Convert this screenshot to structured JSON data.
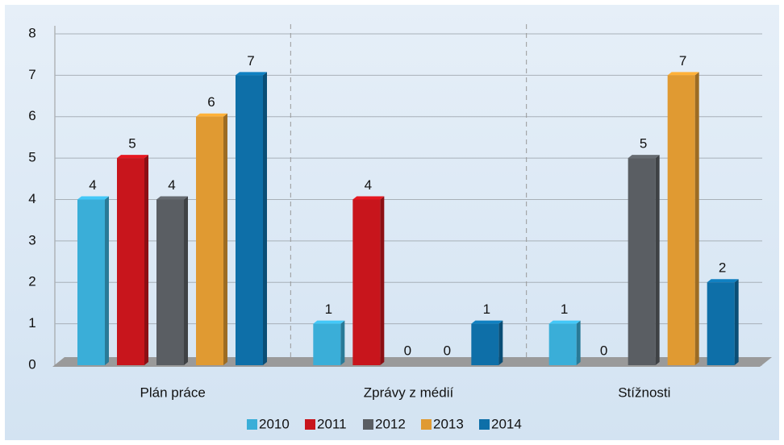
{
  "chart_data": {
    "type": "bar",
    "categories": [
      "Plán práce",
      "Zprávy z médií",
      "Stížnosti"
    ],
    "series": [
      {
        "name": "2010",
        "color": "#3aaed8",
        "values": [
          4,
          1,
          1
        ]
      },
      {
        "name": "2011",
        "color": "#c8151c",
        "values": [
          5,
          4,
          0
        ]
      },
      {
        "name": "2012",
        "color": "#5a5e63",
        "values": [
          4,
          0,
          5
        ]
      },
      {
        "name": "2013",
        "color": "#e09a32",
        "values": [
          6,
          0,
          7
        ]
      },
      {
        "name": "2014",
        "color": "#0e6fa8",
        "values": [
          7,
          1,
          2
        ]
      }
    ],
    "ylim": [
      0,
      8
    ],
    "yticks": [
      0,
      1,
      2,
      3,
      4,
      5,
      6,
      7,
      8
    ],
    "grid": true,
    "legend": "bottom"
  }
}
